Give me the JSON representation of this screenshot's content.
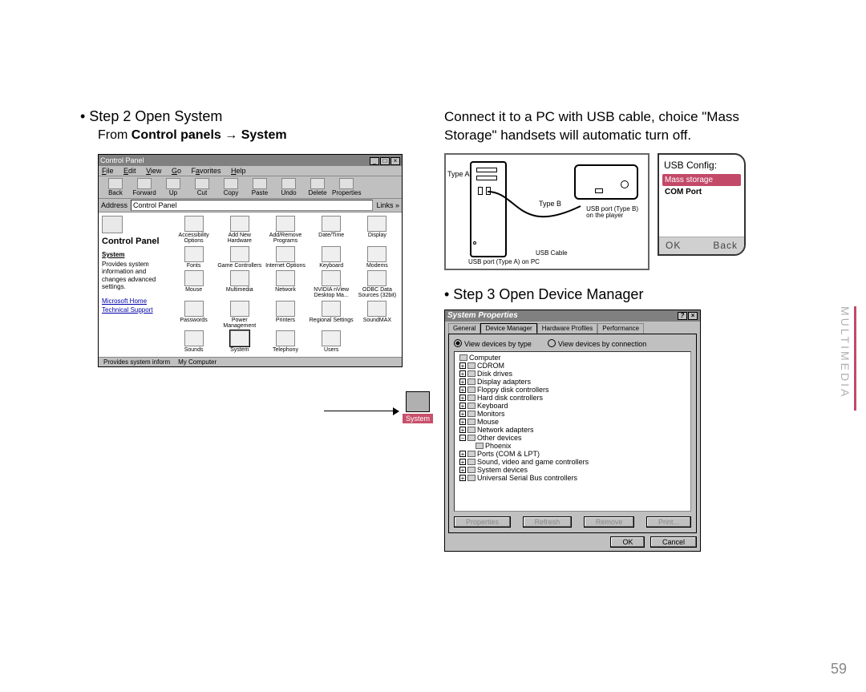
{
  "colors": {
    "accent": "#c24a68"
  },
  "step2": {
    "heading": "• Step 2 Open System",
    "sub_prefix": "From ",
    "sub_bold1": "Control panels",
    "sub_arrow": " → ",
    "sub_bold2": "System"
  },
  "connect_text": "Connect it to a PC with USB cable, choice \"Mass Storage\" handsets will automatic turn off.",
  "step3": {
    "heading": "• Step 3 Open Device Manager"
  },
  "side_label": "MULTIMEDIA",
  "page_number": "59",
  "control_panel": {
    "window_title": "Control Panel",
    "menu": [
      "File",
      "Edit",
      "View",
      "Go",
      "Favorites",
      "Help"
    ],
    "toolbar": [
      "Back",
      "Forward",
      "Up",
      "Cut",
      "Copy",
      "Paste",
      "Undo",
      "Delete",
      "Properties"
    ],
    "address_label": "Address",
    "address_value": "Control Panel",
    "links_label": "Links »",
    "side_title": "Control Panel",
    "side_desc_title": "System",
    "side_desc": "Provides system information and changes advanced settings.",
    "link1": "Microsoft Home",
    "link2": "Technical Support",
    "items": [
      "Accessibility Options",
      "Add New Hardware",
      "Add/Remove Programs",
      "Date/Time",
      "Display",
      "Fonts",
      "Game Controllers",
      "Internet Options",
      "Keyboard",
      "Modems",
      "Mouse",
      "Multimedia",
      "Network",
      "NVIDIA nView Desktop Ma...",
      "ODBC Data Sources (32bit)",
      "Passwords",
      "Power Management",
      "Printers",
      "Regional Settings",
      "SoundMAX",
      "Sounds",
      "System",
      "Telephony",
      "Users",
      ""
    ],
    "selected_index": 21,
    "status1": "Provides system inform",
    "status2": "My Computer",
    "callout_label": "System"
  },
  "usb": {
    "type_a_label": "Type A",
    "type_b_label": "Type B",
    "usb_cable_label": "USB Cable",
    "port_a_label": "USB port (Type A) on PC",
    "port_b_label_line1": "USB port (Type B)",
    "port_b_label_line2": "on the player"
  },
  "usb_config": {
    "title": "USB Config:",
    "opt1": "Mass storage",
    "opt2": "COM Port",
    "ok": "OK",
    "back": "Back"
  },
  "sysprops": {
    "title": "System Properties",
    "tabs": [
      "General",
      "Device Manager",
      "Hardware Profiles",
      "Performance"
    ],
    "active_tab": 1,
    "radio1": "View devices by type",
    "radio2": "View devices by connection",
    "tree_root": "Computer",
    "tree": [
      "CDROM",
      "Disk drives",
      "Display adapters",
      "Floppy disk controllers",
      "Hard disk controllers",
      "Keyboard",
      "Monitors",
      "Mouse",
      "Network adapters"
    ],
    "other_devices": "Other devices",
    "other_child": "Phoenix",
    "tree_rest": [
      "Ports (COM & LPT)",
      "Sound, video and game controllers",
      "System devices",
      "Universal Serial Bus controllers"
    ],
    "btn_props": "Properties",
    "btn_refresh": "Refresh",
    "btn_remove": "Remove",
    "btn_print": "Print...",
    "btn_ok": "OK",
    "btn_cancel": "Cancel"
  }
}
